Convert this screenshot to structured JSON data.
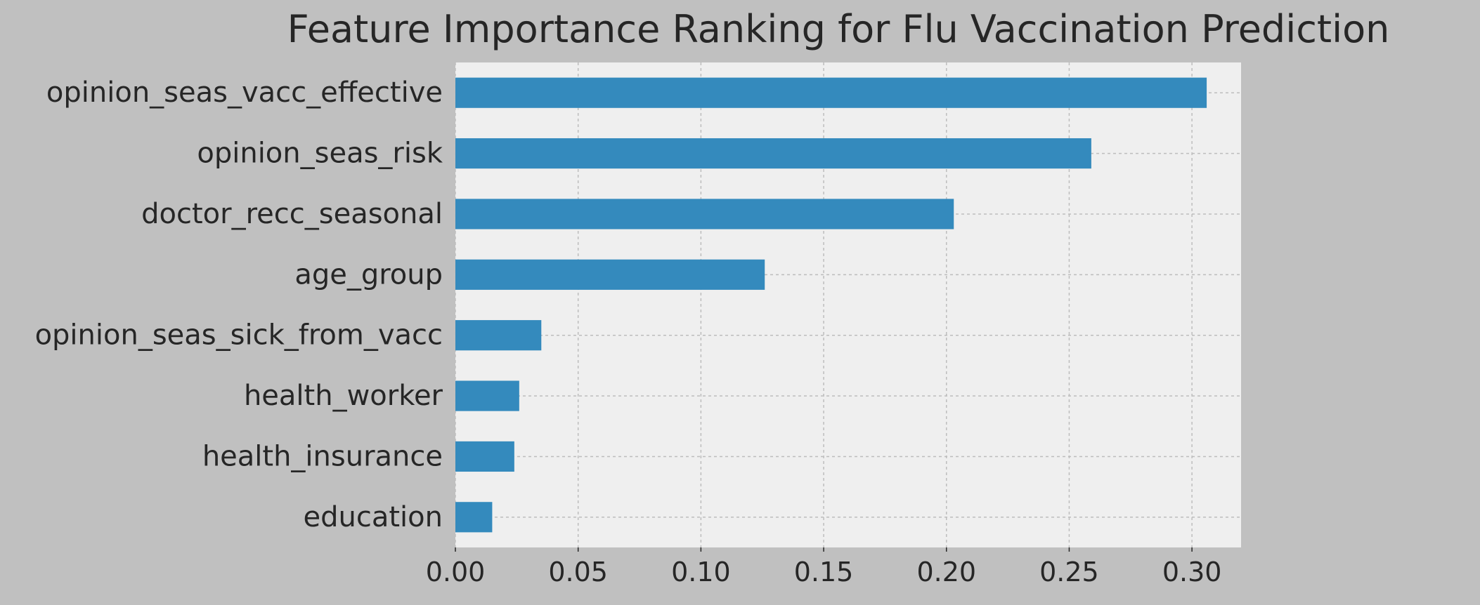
{
  "chart_data": {
    "type": "bar",
    "orientation": "horizontal",
    "title": "Feature Importance Ranking for Flu Vaccination Prediction",
    "xlabel": "",
    "ylabel": "",
    "categories": [
      "opinion_seas_vacc_effective",
      "opinion_seas_risk",
      "doctor_recc_seasonal",
      "age_group",
      "opinion_seas_sick_from_vacc",
      "health_worker",
      "health_insurance",
      "education"
    ],
    "values": [
      0.306,
      0.259,
      0.203,
      0.126,
      0.035,
      0.026,
      0.024,
      0.015
    ],
    "xlim": [
      0,
      0.32
    ],
    "xticks": [
      "0.00",
      "0.05",
      "0.10",
      "0.15",
      "0.20",
      "0.25",
      "0.30"
    ],
    "grid": true,
    "legend": "none",
    "colors": {
      "figure_background": "#c0c0c0",
      "plot_background": "#efefef",
      "bar": "#348abd",
      "grid": "#bdbdbd",
      "text": "#262626"
    }
  }
}
